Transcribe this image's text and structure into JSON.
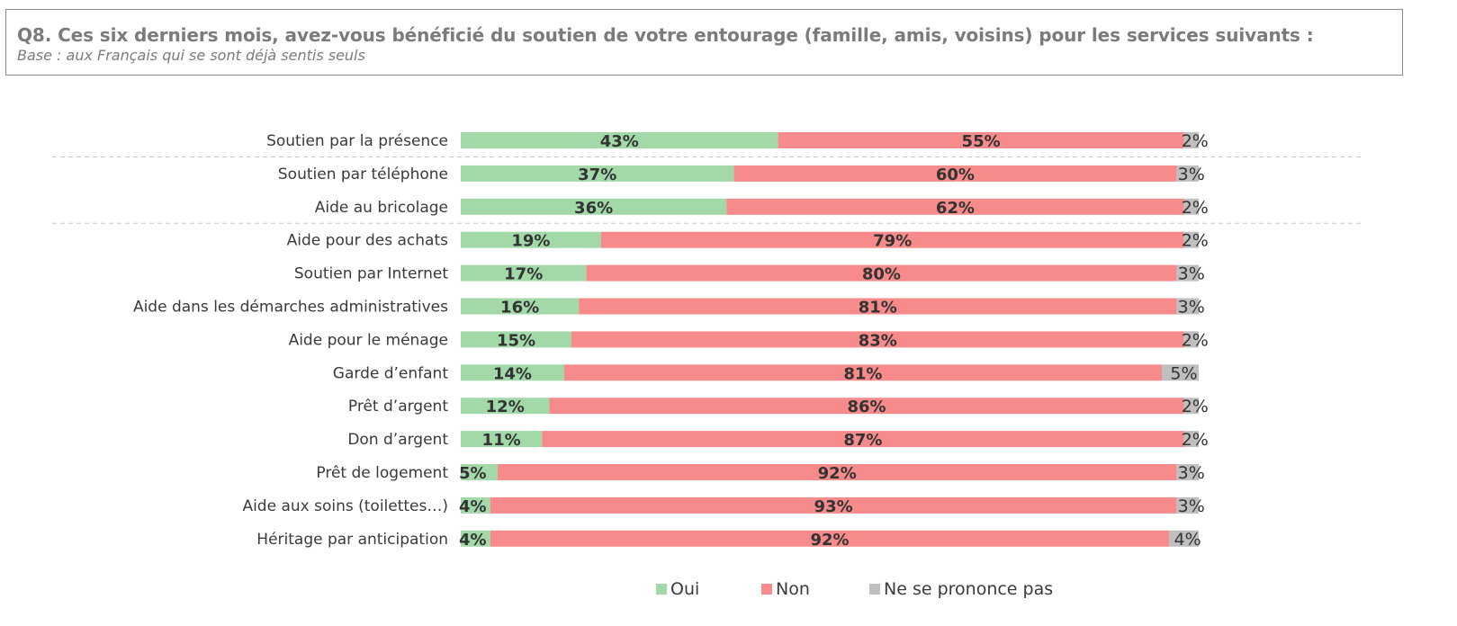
{
  "header": {
    "title": "Q8. Ces six derniers mois, avez-vous bénéficié du soutien de votre entourage (famille, amis, voisins) pour les services suivants :",
    "subtitle": "Base : aux Français qui se sont déjà sentis seuls"
  },
  "chart_data": {
    "type": "bar",
    "orientation": "horizontal",
    "stacked": true,
    "percent_scale": [
      0,
      100
    ],
    "categories": [
      "Soutien par la présence",
      "Soutien par téléphone",
      "Aide au bricolage",
      "Aide pour des achats",
      "Soutien par Internet",
      "Aide dans les démarches administratives",
      "Aide pour le ménage",
      "Garde d’enfant",
      "Prêt d’argent",
      "Don d’argent",
      "Prêt de logement",
      "Aide aux soins (toilettes…)",
      "Héritage par anticipation"
    ],
    "series": [
      {
        "name": "Oui",
        "color": "#a3d9a9",
        "values": [
          43,
          37,
          36,
          19,
          17,
          16,
          15,
          14,
          12,
          11,
          5,
          4,
          4
        ]
      },
      {
        "name": "Non",
        "color": "#f78b8b",
        "values": [
          55,
          60,
          62,
          79,
          80,
          81,
          83,
          81,
          86,
          87,
          92,
          93,
          92
        ]
      },
      {
        "name": "Ne se prononce pas",
        "color": "#bfbfbf",
        "values": [
          2,
          3,
          2,
          2,
          3,
          3,
          2,
          5,
          2,
          2,
          3,
          3,
          4
        ]
      }
    ],
    "group_separators_after": [
      0,
      2
    ],
    "legend": {
      "position": "bottom"
    },
    "grid": false
  }
}
